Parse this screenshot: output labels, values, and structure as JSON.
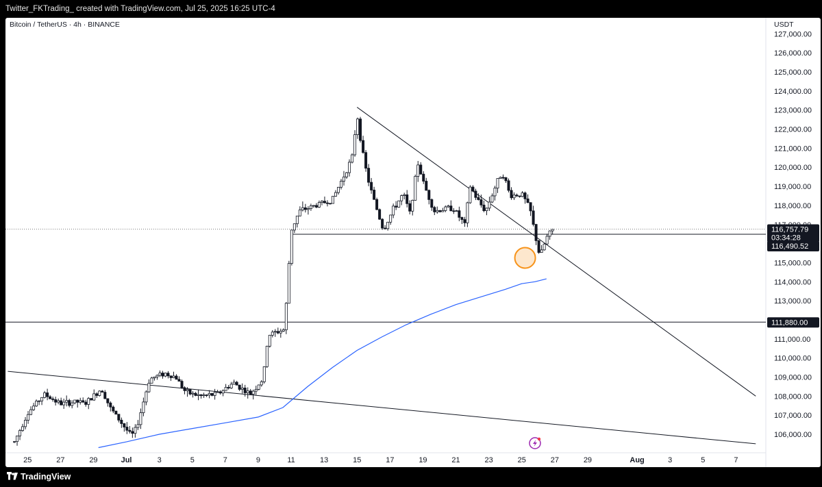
{
  "header": {
    "caption": "Twitter_FKTrading_ created with TradingView.com, Jul 25, 2025 16:25 UTC-4"
  },
  "chart_info": {
    "symbol_line": "Bitcoin / TetherUS · 4h · BINANCE",
    "currency": "USDT"
  },
  "footer": {
    "brand": "TradingView"
  },
  "colors": {
    "ma_line": "#2962ff",
    "highlight": "#f7931a",
    "candle": "#131722",
    "background": "#ffffff"
  },
  "chart_data": {
    "type": "candlestick",
    "title": "Bitcoin / TetherUS · 4h · BINANCE",
    "ylabel": "USDT",
    "ylim": [
      105200,
      127500
    ],
    "y_ticks": [
      106000,
      107000,
      108000,
      109000,
      110000,
      111000,
      112000,
      113000,
      114000,
      115000,
      116000,
      117000,
      118000,
      119000,
      120000,
      121000,
      122000,
      123000,
      124000,
      125000,
      126000,
      127000
    ],
    "y_tick_labels": [
      "106,000.00",
      "107,000.00",
      "108,000.00",
      "109,000.00",
      "110,000.00",
      "111,000.00",
      "112,000.00",
      "113,000.00",
      "114,000.00",
      "115,000.00",
      "116,000.00",
      "117,000.00",
      "118,000.00",
      "119,000.00",
      "120,000.00",
      "121,000.00",
      "122,000.00",
      "123,000.00",
      "124,000.00",
      "125,000.00",
      "126,000.00",
      "127,000.00"
    ],
    "x_ticks": [
      {
        "day": -6,
        "label": "25"
      },
      {
        "day": -4,
        "label": "27"
      },
      {
        "day": -2,
        "label": "29"
      },
      {
        "day": 0,
        "label": "Jul"
      },
      {
        "day": 2,
        "label": "3"
      },
      {
        "day": 4,
        "label": "5"
      },
      {
        "day": 6,
        "label": "7"
      },
      {
        "day": 8,
        "label": "9"
      },
      {
        "day": 10,
        "label": "11"
      },
      {
        "day": 12,
        "label": "13"
      },
      {
        "day": 14,
        "label": "15"
      },
      {
        "day": 16,
        "label": "17"
      },
      {
        "day": 18,
        "label": "19"
      },
      {
        "day": 20,
        "label": "21"
      },
      {
        "day": 22,
        "label": "23"
      },
      {
        "day": 24,
        "label": "25"
      },
      {
        "day": 26,
        "label": "27"
      },
      {
        "day": 28,
        "label": "29"
      },
      {
        "day": 31,
        "label": "Aug"
      },
      {
        "day": 33,
        "label": "3"
      },
      {
        "day": 35,
        "label": "5"
      },
      {
        "day": 37,
        "label": "7"
      }
    ],
    "price_labels": {
      "last_price": "116,757.79",
      "countdown": "03:34:28",
      "level_a": "116,490.52",
      "level_b": "111,880.00"
    },
    "levels": {
      "last": 116757.79,
      "a": 116490.52,
      "b": 111880.0
    },
    "trendlines": [
      {
        "name": "descending-resistance",
        "from": [
          14.0,
          123150
        ],
        "to": [
          38.2,
          108000
        ]
      },
      {
        "name": "long-term-support",
        "from": [
          -7.2,
          109300
        ],
        "to": [
          38.2,
          105500
        ]
      }
    ],
    "moving_average": [
      [
        -1.7,
        105300
      ],
      [
        0.0,
        105600
      ],
      [
        2.0,
        106000
      ],
      [
        4.0,
        106300
      ],
      [
        6.0,
        106600
      ],
      [
        8.0,
        106900
      ],
      [
        9.5,
        107400
      ],
      [
        11.0,
        108500
      ],
      [
        12.5,
        109500
      ],
      [
        14.0,
        110400
      ],
      [
        15.5,
        111100
      ],
      [
        17.0,
        111750
      ],
      [
        18.5,
        112300
      ],
      [
        20.0,
        112800
      ],
      [
        21.5,
        113200
      ],
      [
        23.0,
        113600
      ],
      [
        24.0,
        113900
      ],
      [
        24.8,
        114000
      ],
      [
        25.5,
        114150
      ]
    ],
    "highlight": {
      "x": 24.2,
      "y": 115250
    },
    "anchors": [
      [
        -6.8,
        105600
      ],
      [
        -6.0,
        107100
      ],
      [
        -5.0,
        108100
      ],
      [
        -4.0,
        107600
      ],
      [
        -3.0,
        107700
      ],
      [
        -2.5,
        107600
      ],
      [
        -1.5,
        108400
      ],
      [
        -1.0,
        107400
      ],
      [
        0.3,
        105900
      ],
      [
        0.6,
        106300
      ],
      [
        1.4,
        108900
      ],
      [
        2.3,
        109200
      ],
      [
        3.0,
        109000
      ],
      [
        3.6,
        108200
      ],
      [
        4.5,
        108000
      ],
      [
        5.5,
        108100
      ],
      [
        6.5,
        108700
      ],
      [
        7.5,
        108100
      ],
      [
        8.3,
        108900
      ],
      [
        8.6,
        111200
      ],
      [
        9.6,
        111500
      ],
      [
        10.0,
        116700
      ],
      [
        10.5,
        117700
      ],
      [
        11.8,
        118100
      ],
      [
        12.5,
        118300
      ],
      [
        13.0,
        119200
      ],
      [
        13.7,
        120500
      ],
      [
        14.0,
        122800
      ],
      [
        14.4,
        120400
      ],
      [
        14.8,
        118900
      ],
      [
        15.6,
        116700
      ],
      [
        16.2,
        117800
      ],
      [
        16.8,
        118600
      ],
      [
        17.2,
        117600
      ],
      [
        17.7,
        120200
      ],
      [
        18.1,
        119000
      ],
      [
        18.7,
        117700
      ],
      [
        19.8,
        117900
      ],
      [
        20.6,
        116900
      ],
      [
        20.8,
        119100
      ],
      [
        21.3,
        118300
      ],
      [
        21.8,
        117700
      ],
      [
        22.3,
        118800
      ],
      [
        22.8,
        119800
      ],
      [
        23.3,
        118500
      ],
      [
        24.0,
        118600
      ],
      [
        24.5,
        117800
      ],
      [
        24.8,
        116500
      ],
      [
        25.1,
        115300
      ],
      [
        25.5,
        116300
      ],
      [
        25.9,
        116750
      ]
    ]
  }
}
